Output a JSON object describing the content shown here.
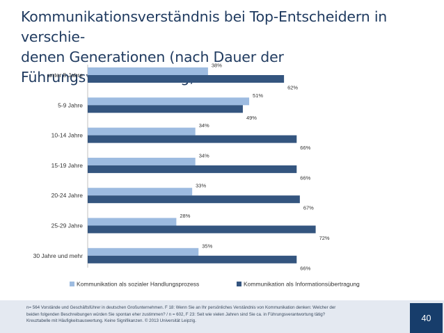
{
  "slide": {
    "title_line1": "Kommunikationsverständnis bei Top-Entscheidern in verschie-",
    "title_line2": "denen Generationen (nach Dauer der Führungsverantwortung)",
    "footnote_line1": "n= 564 Vorstände und Geschäftsführer in deutschen Großunternehmen. F 18: Wenn Sie an Ihr persönliches Verständnis von Kommunikation denken: Welcher der",
    "footnote_line2": "beiden folgenden Beschreibungen würden Sie spontan eher zustimmen? / n = 602, F 23: Seit wie vielen Jahren sind Sie ca. in Führungsverantwortung tätig?",
    "footnote_line3": "Kreuztabelle mit Häufigkeitsauswertung. Keine Signifikanzen. © 2013 Universität Leipzig.",
    "page_number": "40"
  },
  "chart_data": {
    "type": "bar",
    "orientation": "horizontal",
    "categories": [
      "unter 5 Jahre",
      "5-9 Jahre",
      "10-14 Jahre",
      "15-19 Jahre",
      "20-24 Jahre",
      "25-29 Jahre",
      "30 Jahre und mehr"
    ],
    "series": [
      {
        "name": "Kommunikation als sozialer Handlungsprozess",
        "color": "#9dbbe0",
        "values": [
          38,
          51,
          34,
          34,
          33,
          28,
          35
        ],
        "labels": [
          "38%",
          "51%",
          "34%",
          "34%",
          "33%",
          "28%",
          "35%"
        ]
      },
      {
        "name": "Kommunikation als Informationsübertragung",
        "color": "#34557f",
        "values": [
          62,
          49,
          66,
          66,
          67,
          72,
          66
        ],
        "labels": [
          "62%",
          "49%",
          "66%",
          "66%",
          "67%",
          "72%",
          "66%"
        ]
      }
    ],
    "xlim": [
      0,
      100
    ],
    "legend": "bottom",
    "grid": false
  }
}
